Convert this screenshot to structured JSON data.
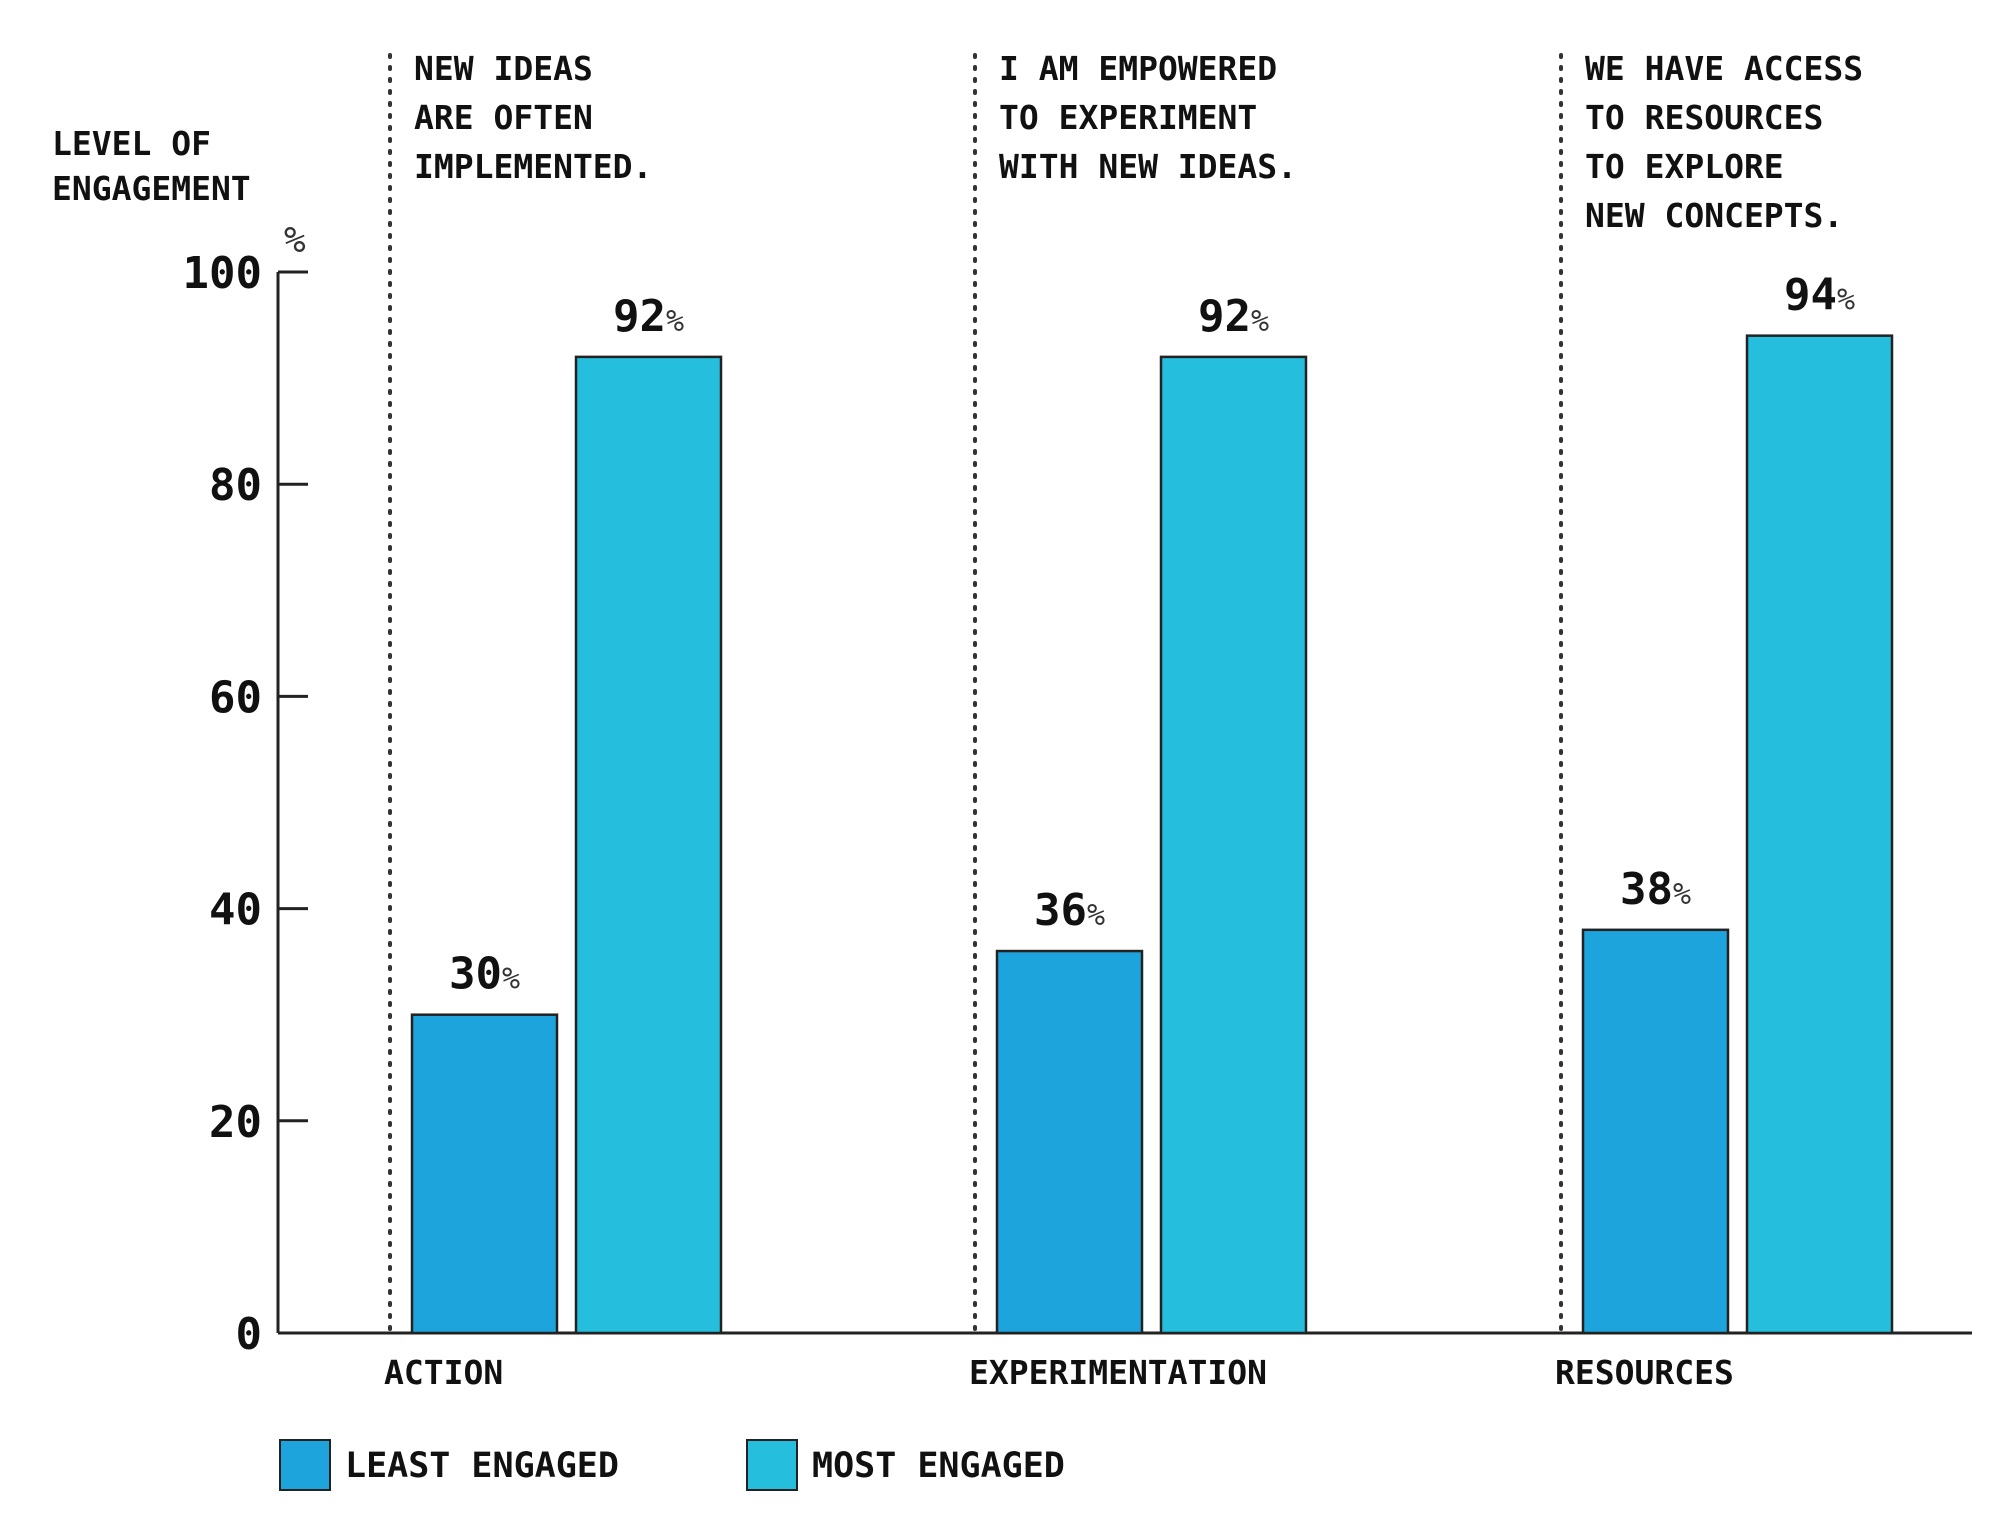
{
  "chart_data": {
    "type": "bar",
    "ylabel": "LEVEL OF\nENGAGEMENT",
    "yunit": "%",
    "ylim": [
      0,
      100
    ],
    "yticks": [
      0,
      20,
      40,
      60,
      80,
      100
    ],
    "categories": [
      "ACTION",
      "EXPERIMENTATION",
      "RESOURCES"
    ],
    "statements": [
      "NEW IDEAS\nARE OFTEN\nIMPLEMENTED.",
      "I AM EMPOWERED\nTO EXPERIMENT\nWITH NEW IDEAS.",
      "WE HAVE ACCESS\nTO RESOURCES\nTO EXPLORE\nNEW CONCEPTS."
    ],
    "series": [
      {
        "name": "LEAST ENGAGED",
        "values": [
          30,
          36,
          38
        ],
        "color": "#1ea4dd"
      },
      {
        "name": "MOST ENGAGED",
        "values": [
          92,
          92,
          94
        ],
        "color": "#25bfdd"
      }
    ],
    "value_suffix": "%",
    "grid": false,
    "legend_position": "bottom-left"
  }
}
